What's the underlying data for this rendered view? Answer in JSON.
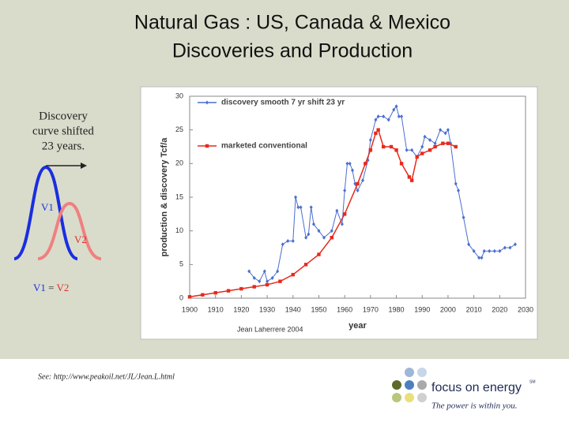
{
  "slide": {
    "title": [
      "Natural Gas :  US, Canada & Mexico",
      "Discoveries and Production"
    ],
    "diagram": {
      "caption": [
        "Discovery",
        "curve shifted",
        "23 years."
      ],
      "v1": "V1",
      "v2": "V2",
      "equation": [
        "V1",
        "=",
        "V2"
      ]
    },
    "source": "See:  http://www.peakoil.net/JL/Jean.L.html",
    "logo": {
      "name": "focus on energy",
      "mark": "SM",
      "tagline": "The power is within you."
    }
  },
  "chart_data": {
    "type": "line",
    "xlabel": "year",
    "ylabel": "production & discovery Tcf/a",
    "credit": "Jean Laherrere 2004",
    "xlim": [
      1900,
      2030
    ],
    "xticks": [
      1900,
      1910,
      1920,
      1930,
      1940,
      1950,
      1960,
      1970,
      1980,
      1990,
      2000,
      2010,
      2020,
      2030
    ],
    "ylim": [
      0,
      30
    ],
    "yticks": [
      0,
      5,
      10,
      15,
      20,
      25,
      30
    ],
    "grid": false,
    "legend": "upper left",
    "series": [
      {
        "name": "discovery smooth 7 yr shift 23 yr",
        "color": "#4a6fd0",
        "marker": "diamond",
        "x": [
          1923,
          1925,
          1927,
          1929,
          1930,
          1932,
          1934,
          1936,
          1938,
          1940,
          1941,
          1942,
          1943,
          1945,
          1946,
          1947,
          1948,
          1950,
          1952,
          1955,
          1957,
          1959,
          1960,
          1961,
          1962,
          1963,
          1964,
          1965,
          1967,
          1969,
          1970,
          1972,
          1973,
          1975,
          1977,
          1979,
          1980,
          1981,
          1982,
          1984,
          1986,
          1988,
          1990,
          1991,
          1993,
          1995,
          1997,
          1999,
          2000,
          2001,
          2003,
          2004,
          2006,
          2008,
          2010,
          2012,
          2013,
          2014,
          2016,
          2018,
          2020,
          2022,
          2024,
          2026
        ],
        "values": [
          4,
          3,
          2.5,
          4,
          2.5,
          3,
          4,
          8,
          8.5,
          8.5,
          15,
          13.5,
          13.5,
          9,
          9.5,
          13.5,
          11,
          10,
          9,
          10,
          13,
          11,
          16,
          20,
          20,
          19,
          17,
          16,
          17.5,
          20.5,
          23.5,
          26.5,
          27,
          27,
          26.5,
          28,
          28.5,
          27,
          27,
          22,
          22,
          21,
          22.5,
          24,
          23.5,
          23,
          25,
          24.5,
          25,
          23,
          17,
          16,
          12,
          8,
          7,
          6,
          6,
          7,
          7,
          7,
          7,
          7.5,
          7.5,
          8
        ]
      },
      {
        "name": "marketed conventional",
        "color": "#e8291c",
        "marker": "square",
        "x": [
          1900,
          1905,
          1910,
          1915,
          1920,
          1925,
          1930,
          1935,
          1940,
          1945,
          1950,
          1955,
          1960,
          1965,
          1968,
          1970,
          1972,
          1973,
          1975,
          1978,
          1980,
          1982,
          1985,
          1986,
          1988,
          1990,
          1993,
          1995,
          1998,
          2000,
          2003
        ],
        "values": [
          0.2,
          0.5,
          0.8,
          1.1,
          1.4,
          1.7,
          2,
          2.5,
          3.5,
          5,
          6.5,
          9,
          12.5,
          17,
          20,
          22,
          24.5,
          25,
          22.5,
          22.5,
          22,
          20,
          18,
          17.5,
          21,
          21.5,
          22,
          22.5,
          23,
          23,
          22.5
        ]
      }
    ]
  }
}
